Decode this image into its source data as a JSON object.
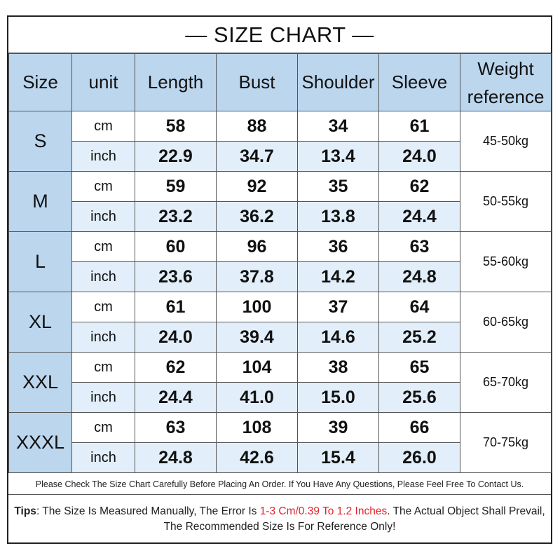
{
  "title": "— SIZE CHART —",
  "headers": {
    "size": "Size",
    "unit": "unit",
    "length": "Length",
    "bust": "Bust",
    "shoulder": "Shoulder",
    "sleeve": "Sleeve",
    "weight_line1": "Weight",
    "weight_line2": "reference"
  },
  "rows": [
    {
      "size": "S",
      "weight": "45-50kg",
      "cm": {
        "unit": "cm",
        "length": "58",
        "bust": "88",
        "shoulder": "34",
        "sleeve": "61"
      },
      "inch": {
        "unit": "inch",
        "length": "22.9",
        "bust": "34.7",
        "shoulder": "13.4",
        "sleeve": "24.0"
      }
    },
    {
      "size": "M",
      "weight": "50-55kg",
      "cm": {
        "unit": "cm",
        "length": "59",
        "bust": "92",
        "shoulder": "35",
        "sleeve": "62"
      },
      "inch": {
        "unit": "inch",
        "length": "23.2",
        "bust": "36.2",
        "shoulder": "13.8",
        "sleeve": "24.4"
      }
    },
    {
      "size": "L",
      "weight": "55-60kg",
      "cm": {
        "unit": "cm",
        "length": "60",
        "bust": "96",
        "shoulder": "36",
        "sleeve": "63"
      },
      "inch": {
        "unit": "inch",
        "length": "23.6",
        "bust": "37.8",
        "shoulder": "14.2",
        "sleeve": "24.8"
      }
    },
    {
      "size": "XL",
      "weight": "60-65kg",
      "cm": {
        "unit": "cm",
        "length": "61",
        "bust": "100",
        "shoulder": "37",
        "sleeve": "64"
      },
      "inch": {
        "unit": "inch",
        "length": "24.0",
        "bust": "39.4",
        "shoulder": "14.6",
        "sleeve": "25.2"
      }
    },
    {
      "size": "XXL",
      "weight": "65-70kg",
      "cm": {
        "unit": "cm",
        "length": "62",
        "bust": "104",
        "shoulder": "38",
        "sleeve": "65"
      },
      "inch": {
        "unit": "inch",
        "length": "24.4",
        "bust": "41.0",
        "shoulder": "15.0",
        "sleeve": "25.6"
      }
    },
    {
      "size": "XXXL",
      "weight": "70-75kg",
      "cm": {
        "unit": "cm",
        "length": "63",
        "bust": "108",
        "shoulder": "39",
        "sleeve": "66"
      },
      "inch": {
        "unit": "inch",
        "length": "24.8",
        "bust": "42.6",
        "shoulder": "15.4",
        "sleeve": "26.0"
      }
    }
  ],
  "note": "Please Check The Size Chart Carefully Before Placing An Order. If You Have Any Questions, Please Feel Free To Contact Us.",
  "tips": {
    "label": "Tips",
    "text1": ": The Size Is Measured Manually, The Error Is ",
    "highlight": "1-3 Cm/0.39 To 1.2 Inches",
    "text2": ". The Actual Object Shall Prevail, The Recommended Size Is For Reference Only!"
  },
  "colors": {
    "header_bg": "#bcd6ee",
    "inch_row_bg": "#e2eef9",
    "highlight": "#e0232a"
  }
}
